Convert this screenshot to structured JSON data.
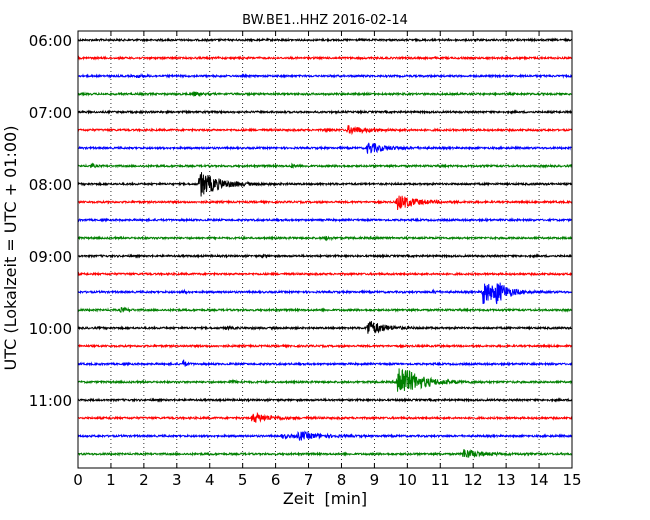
{
  "chart_data": {
    "type": "line",
    "title": "BW.BE1..HHZ 2016-02-14",
    "xlabel": "Zeit  [min]",
    "ylabel": "UTC (Lokalzeit = UTC + 01:00)",
    "xlim": [
      0,
      15
    ],
    "x_ticks": [
      "0",
      "1",
      "2",
      "3",
      "4",
      "5",
      "6",
      "7",
      "8",
      "9",
      "10",
      "11",
      "12",
      "13",
      "14",
      "15"
    ],
    "y_ticks": [
      "06:00",
      "07:00",
      "08:00",
      "09:00",
      "10:00",
      "11:00"
    ],
    "grid": "vertical dotted",
    "colors": [
      "#000000",
      "#ff0000",
      "#0000ff",
      "#008000"
    ],
    "traces": [
      {
        "label": "06:00",
        "color": "#000000",
        "events": []
      },
      {
        "label": "06:15",
        "color": "#ff0000",
        "events": []
      },
      {
        "label": "06:30",
        "color": "#0000ff",
        "events": [
          {
            "t": 1.8,
            "amp": 1.5,
            "dur": 0.15
          }
        ]
      },
      {
        "label": "06:45",
        "color": "#008000",
        "events": [
          {
            "t": 3.5,
            "amp": 2,
            "dur": 0.2
          }
        ]
      },
      {
        "label": "07:00",
        "color": "#000000",
        "events": []
      },
      {
        "label": "07:15",
        "color": "#ff0000",
        "events": [
          {
            "t": 8.2,
            "amp": 4,
            "dur": 0.5
          },
          {
            "t": 7.5,
            "amp": 2,
            "dur": 0.15
          }
        ]
      },
      {
        "label": "07:30",
        "color": "#0000ff",
        "events": [
          {
            "t": 8.8,
            "amp": 6,
            "dur": 0.45
          }
        ]
      },
      {
        "label": "07:45",
        "color": "#008000",
        "events": [
          {
            "t": 0.4,
            "amp": 2,
            "dur": 0.1
          },
          {
            "t": 6.5,
            "amp": 2,
            "dur": 0.1
          }
        ]
      },
      {
        "label": "08:00",
        "color": "#000000",
        "events": [
          {
            "t": 3.7,
            "amp": 13,
            "dur": 0.55
          }
        ]
      },
      {
        "label": "08:15",
        "color": "#ff0000",
        "events": [
          {
            "t": 9.7,
            "amp": 8,
            "dur": 0.5
          }
        ]
      },
      {
        "label": "08:30",
        "color": "#0000ff",
        "events": []
      },
      {
        "label": "08:45",
        "color": "#008000",
        "events": [
          {
            "t": 7.5,
            "amp": 1.5,
            "dur": 0.2
          },
          {
            "t": 9,
            "amp": 1.5,
            "dur": 0.1
          }
        ]
      },
      {
        "label": "09:00",
        "color": "#000000",
        "events": [
          {
            "t": 5.6,
            "amp": 1.5,
            "dur": 0.1
          }
        ]
      },
      {
        "label": "09:15",
        "color": "#ff0000",
        "events": []
      },
      {
        "label": "09:30",
        "color": "#0000ff",
        "events": [
          {
            "t": 12.3,
            "amp": 14,
            "dur": 0.35
          },
          {
            "t": 12.7,
            "amp": 8,
            "dur": 0.35
          },
          {
            "t": 3.2,
            "amp": 1.5,
            "dur": 0.1
          },
          {
            "t": 10.8,
            "amp": 1.5,
            "dur": 0.1
          }
        ]
      },
      {
        "label": "09:45",
        "color": "#008000",
        "events": [
          {
            "t": 1.3,
            "amp": 2.5,
            "dur": 0.15
          }
        ]
      },
      {
        "label": "10:00",
        "color": "#000000",
        "events": [
          {
            "t": 8.8,
            "amp": 8,
            "dur": 0.45
          },
          {
            "t": 4.5,
            "amp": 1.5,
            "dur": 0.15
          }
        ]
      },
      {
        "label": "10:15",
        "color": "#ff0000",
        "events": []
      },
      {
        "label": "10:30",
        "color": "#0000ff",
        "events": [
          {
            "t": 3.2,
            "amp": 4,
            "dur": 0.08
          }
        ]
      },
      {
        "label": "10:45",
        "color": "#008000",
        "events": [
          {
            "t": 9.7,
            "amp": 20,
            "dur": 0.55
          },
          {
            "t": 4.6,
            "amp": 1.5,
            "dur": 0.2
          }
        ]
      },
      {
        "label": "11:00",
        "color": "#000000",
        "events": []
      },
      {
        "label": "11:15",
        "color": "#ff0000",
        "events": [
          {
            "t": 5.3,
            "amp": 5,
            "dur": 0.5
          }
        ]
      },
      {
        "label": "11:30",
        "color": "#0000ff",
        "events": [
          {
            "t": 6.7,
            "amp": 4,
            "dur": 0.6
          },
          {
            "t": 6.2,
            "amp": 2,
            "dur": 0.3
          }
        ]
      },
      {
        "label": "11:45",
        "color": "#008000",
        "events": [
          {
            "t": 11.7,
            "amp": 5,
            "dur": 0.5
          }
        ]
      }
    ]
  }
}
